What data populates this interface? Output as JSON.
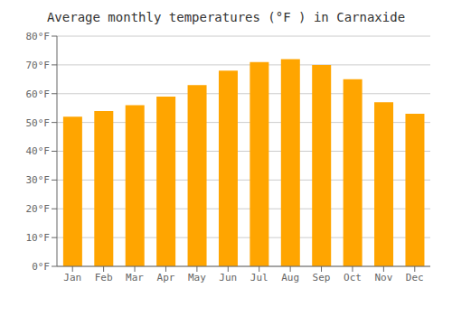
{
  "chart_data": {
    "type": "bar",
    "title": "Average monthly temperatures (°F ) in Carnaxide",
    "categories": [
      "Jan",
      "Feb",
      "Mar",
      "Apr",
      "May",
      "Jun",
      "Jul",
      "Aug",
      "Sep",
      "Oct",
      "Nov",
      "Dec"
    ],
    "values": [
      52,
      54,
      56,
      59,
      63,
      68,
      71,
      72,
      70,
      65,
      57,
      53
    ],
    "color": "#FFA500",
    "ylim": [
      0,
      80
    ],
    "yticks": [
      {
        "value": 0,
        "label": "0°F"
      },
      {
        "value": 10,
        "label": "10°F"
      },
      {
        "value": 20,
        "label": "20°F"
      },
      {
        "value": 30,
        "label": "30°F"
      },
      {
        "value": 40,
        "label": "40°F"
      },
      {
        "value": 50,
        "label": "50°F"
      },
      {
        "value": 60,
        "label": "60°F"
      },
      {
        "value": 70,
        "label": "70°F"
      },
      {
        "value": 80,
        "label": "80°F"
      }
    ],
    "grid": true
  }
}
